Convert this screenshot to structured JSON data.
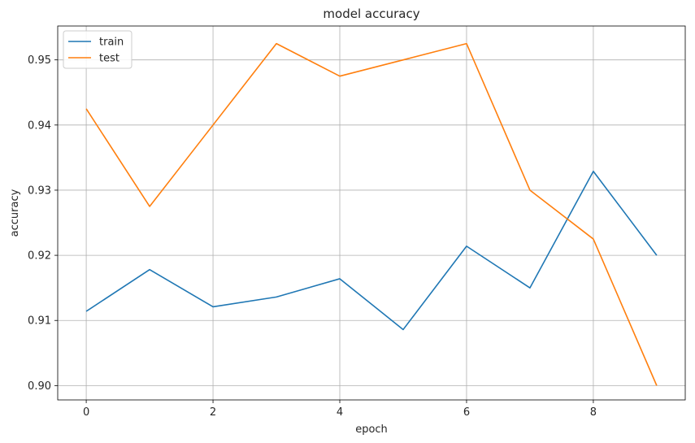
{
  "chart_data": {
    "type": "line",
    "title": "model accuracy",
    "xlabel": "epoch",
    "ylabel": "accuracy",
    "x": [
      0,
      1,
      2,
      3,
      4,
      5,
      6,
      7,
      8,
      9
    ],
    "xlim": [
      -0.45,
      9.45
    ],
    "ylim": [
      0.8978,
      0.9552
    ],
    "xticks": [
      0,
      2,
      4,
      6,
      8
    ],
    "yticks": [
      0.9,
      0.91,
      0.92,
      0.93,
      0.94,
      0.95
    ],
    "ytick_labels": [
      "0.90",
      "0.91",
      "0.92",
      "0.93",
      "0.94",
      "0.95"
    ],
    "grid": true,
    "legend_position": "top-left",
    "series": [
      {
        "name": "train",
        "color": "#1f77b4",
        "values": [
          0.9114,
          0.9178,
          0.9121,
          0.9136,
          0.9164,
          0.9086,
          0.9214,
          0.915,
          0.9329,
          0.92
        ]
      },
      {
        "name": "test",
        "color": "#ff7f0e",
        "values": [
          0.9425,
          0.9275,
          0.94,
          0.9525,
          0.9475,
          0.95,
          0.9525,
          0.93,
          0.9225,
          0.9
        ]
      }
    ]
  }
}
